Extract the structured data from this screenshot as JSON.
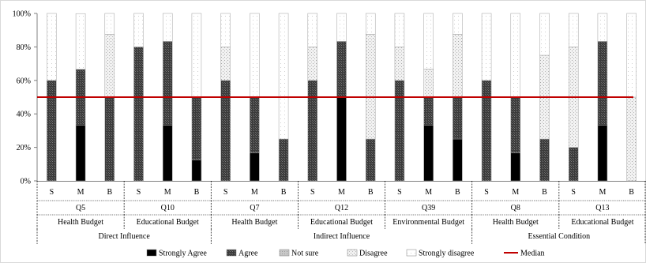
{
  "chart_data": {
    "type": "bar",
    "stacked": true,
    "y_tick_labels": [
      "0%",
      "20%",
      "40%",
      "60%",
      "80%",
      "100%"
    ],
    "ylim": [
      0,
      100
    ],
    "grid": false,
    "legend_position": "bottom",
    "series_names": [
      "Strongly Agree",
      "Agree",
      "Not sure",
      "Disagree",
      "Strongly disagree"
    ],
    "median_label": "Median",
    "median_value": 50,
    "median_color": "#c00000",
    "groups": [
      {
        "question": "Q5",
        "budget": "Health Budget",
        "bars": [
          {
            "label": "S",
            "values": [
              0,
              60,
              0,
              0,
              40
            ]
          },
          {
            "label": "M",
            "values": [
              33.3,
              33.3,
              0,
              0,
              33.3
            ]
          },
          {
            "label": "B",
            "values": [
              0,
              50,
              0,
              37.5,
              12.5
            ]
          }
        ]
      },
      {
        "question": "Q10",
        "budget": "Educational Budget",
        "bars": [
          {
            "label": "S",
            "values": [
              0,
              80,
              0,
              0,
              20
            ]
          },
          {
            "label": "M",
            "values": [
              33.3,
              50,
              0,
              0,
              16.7
            ]
          },
          {
            "label": "B",
            "values": [
              12.5,
              37.5,
              0,
              0,
              50
            ]
          }
        ]
      },
      {
        "question": "Q7",
        "budget": "Health Budget",
        "bars": [
          {
            "label": "S",
            "values": [
              0,
              60,
              0,
              20,
              20
            ]
          },
          {
            "label": "M",
            "values": [
              16.7,
              33.3,
              0,
              0,
              50
            ]
          },
          {
            "label": "B",
            "values": [
              0,
              25,
              0,
              0,
              75
            ]
          }
        ]
      },
      {
        "question": "Q12",
        "budget": "Educational Budget",
        "bars": [
          {
            "label": "S",
            "values": [
              0,
              60,
              0,
              20,
              20
            ]
          },
          {
            "label": "M",
            "values": [
              50,
              33.3,
              0,
              0,
              16.7
            ]
          },
          {
            "label": "B",
            "values": [
              0,
              25,
              0,
              62.5,
              12.5
            ]
          }
        ]
      },
      {
        "question": "Q39",
        "budget": "Environmental Budget",
        "bars": [
          {
            "label": "S",
            "values": [
              0,
              60,
              0,
              20,
              20
            ]
          },
          {
            "label": "M",
            "values": [
              33.3,
              16.7,
              0,
              16.7,
              33.3
            ]
          },
          {
            "label": "B",
            "values": [
              25,
              25,
              0,
              37.5,
              12.5
            ]
          }
        ]
      },
      {
        "question": "Q8",
        "budget": "Health Budget",
        "bars": [
          {
            "label": "S",
            "values": [
              0,
              60,
              0,
              0,
              40
            ]
          },
          {
            "label": "M",
            "values": [
              16.7,
              33.3,
              0,
              0,
              50
            ]
          },
          {
            "label": "B",
            "values": [
              0,
              25,
              0,
              50,
              25
            ]
          }
        ]
      },
      {
        "question": "Q13",
        "budget": "Educational Budget",
        "bars": [
          {
            "label": "S",
            "values": [
              0,
              20,
              0,
              60,
              20
            ]
          },
          {
            "label": "M",
            "values": [
              33.3,
              50,
              0,
              0,
              16.7
            ]
          },
          {
            "label": "B",
            "values": [
              0,
              0,
              0,
              50,
              50
            ]
          }
        ]
      }
    ],
    "categories_top": [
      {
        "label": "Direct Influence",
        "groups": 2
      },
      {
        "label": "Indirect Influence",
        "groups": 3
      },
      {
        "label": "Essential Condition",
        "groups": 2
      }
    ]
  }
}
